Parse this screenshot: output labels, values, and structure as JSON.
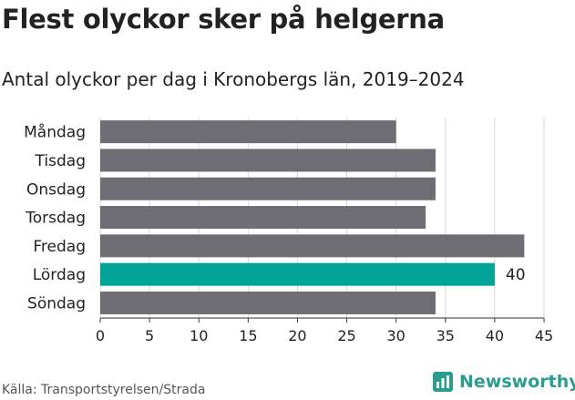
{
  "title": "Flest olyckor sker på helgerna",
  "subtitle": "Antal olyckor per dag i Kronobergs län, 2019–2024",
  "source": "Källa: Transportstyrelsen/Strada",
  "brand": "Newsworthy",
  "colors": {
    "bar": "#6e6d73",
    "highlight": "#00a497",
    "grid": "#d9d9d9",
    "brand": "#2a9d8f"
  },
  "chart_data": {
    "type": "bar",
    "orientation": "horizontal",
    "categories": [
      "Måndag",
      "Tisdag",
      "Onsdag",
      "Torsdag",
      "Fredag",
      "Lördag",
      "Söndag"
    ],
    "values": [
      30,
      34,
      34,
      33,
      43,
      40,
      34
    ],
    "highlight_index": 5,
    "data_labels": [
      {
        "index": 5,
        "text": "40"
      }
    ],
    "xlim": [
      0,
      45
    ],
    "xticks": [
      0,
      5,
      10,
      15,
      20,
      25,
      30,
      35,
      40,
      45
    ],
    "grid": true
  }
}
